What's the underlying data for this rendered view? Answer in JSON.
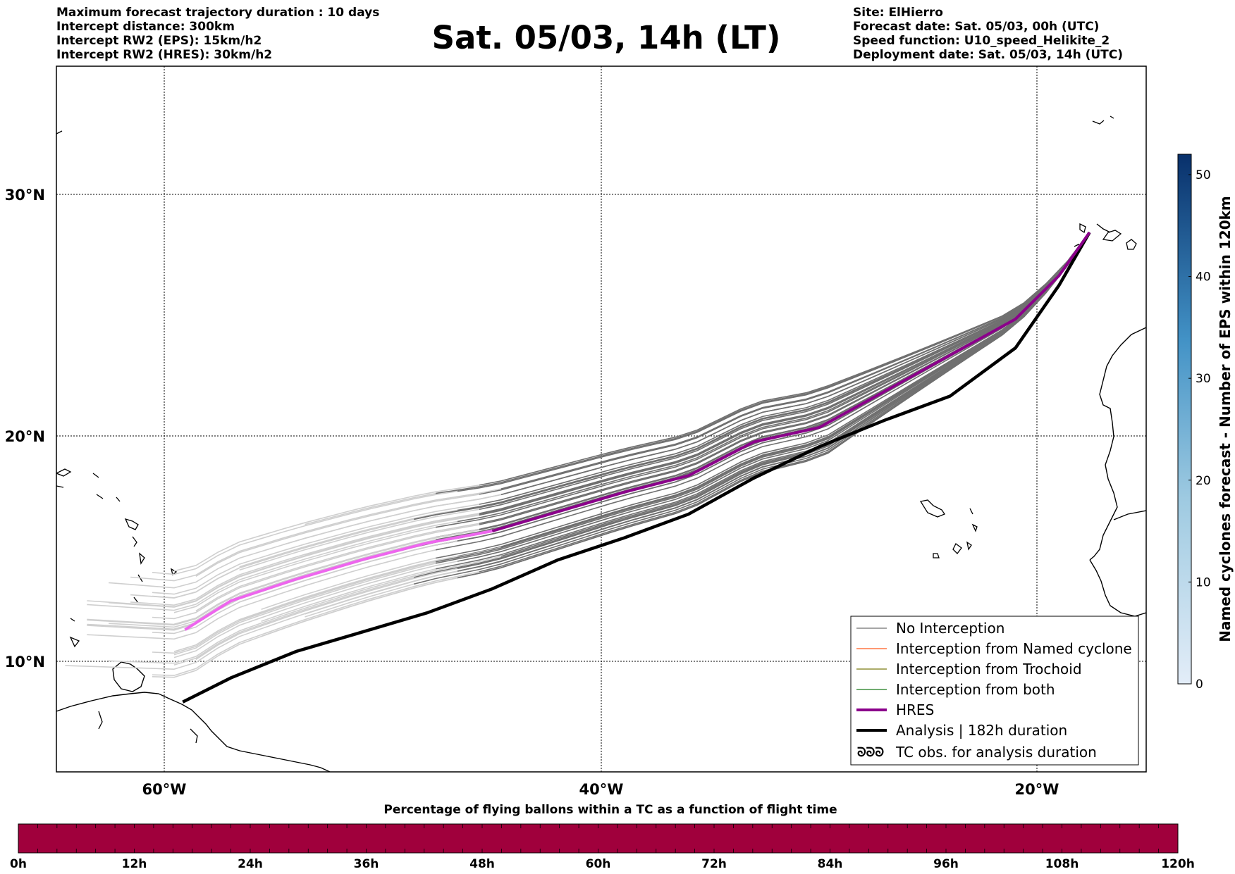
{
  "header_left": [
    "Maximum forecast trajectory duration : 10 days",
    "Intercept distance: 300km",
    "Intercept RW2 (EPS):  15km/h2",
    "Intercept RW2 (HRES): 30km/h2"
  ],
  "title": "Sat. 05/03, 14h (LT)",
  "header_right": [
    "Site: ElHierro",
    "Forecast date: Sat. 05/03, 00h (UTC)",
    "Speed function: U10_speed_Helikite_2",
    "Deployment date: Sat. 05/03, 14h (UTC)"
  ],
  "map": {
    "lon_range": [
      -65,
      -15
    ],
    "lat_range": [
      5.3,
      34.6
    ],
    "lat_labels": [
      "10°N",
      "20°N",
      "30°N"
    ],
    "lon_labels": [
      "60°W",
      "40°W",
      "20°W"
    ],
    "gridlines": true,
    "colors": {
      "no_interception": "#707070",
      "no_interception_late": "#cfcfcf",
      "named_cyclone": "#ff5a1f",
      "trochoid": "#7a7a10",
      "both": "#1c7a1c",
      "hres": "#8b008b",
      "hres_late": "#ee66ee",
      "analysis": "#000000"
    }
  },
  "legend": {
    "position": "lower-right",
    "items": [
      {
        "label": "No Interception",
        "style": "thin-gray"
      },
      {
        "label": "Interception from Named cyclone",
        "style": "thin-orange"
      },
      {
        "label": "Interception from Trochoid",
        "style": "thin-olive"
      },
      {
        "label": "Interception from both",
        "style": "thin-green"
      },
      {
        "label": "HRES",
        "style": "thick-purple"
      },
      {
        "label": "Analysis | 182h duration",
        "style": "thick-black"
      },
      {
        "label": "TC obs. for analysis duration",
        "style": "tc-symbols"
      }
    ],
    "tc_symbol": "ᘐᘐᘐ"
  },
  "chart_data": {
    "type": "line",
    "hres_track": {
      "lon": [
        -17.6,
        -19,
        -21,
        -24,
        -27,
        -30,
        -33,
        -36,
        -39,
        -42,
        -45,
        -48,
        -51,
        -54,
        -57,
        -59.1
      ],
      "lat": [
        27.7,
        25.9,
        24.1,
        22.6,
        21.1,
        19.6,
        19.0,
        17.6,
        16.9,
        16.1,
        15.3,
        14.8,
        14.1,
        13.3,
        12.4,
        11.2
      ]
    },
    "analysis_track": {
      "lon": [
        -17.6,
        -19,
        -21,
        -24,
        -27,
        -30,
        -33,
        -36,
        -39,
        -42,
        -45,
        -48,
        -51,
        -54,
        -57,
        -59.2
      ],
      "lat": [
        27.7,
        25.5,
        22.9,
        20.9,
        19.9,
        18.8,
        17.5,
        16.0,
        15.0,
        14.1,
        12.9,
        11.9,
        11.1,
        10.3,
        9.2,
        8.2
      ]
    },
    "eps_member_count": 50,
    "hres_color_change_lon": -45
  },
  "colorbar": {
    "label": "Named cyclones forecast - Number of EPS within 120km",
    "ticks": [
      "0",
      "10",
      "20",
      "30",
      "40",
      "50"
    ],
    "range": [
      0,
      52
    ],
    "color_low": "#e3edf8",
    "color_high": "#08306b"
  },
  "bottom_bar": {
    "title": "Percentage of flying ballons within a TC as a function of flight time",
    "ticks": [
      "0h",
      "12h",
      "24h",
      "36h",
      "48h",
      "60h",
      "72h",
      "84h",
      "96h",
      "108h",
      "120h"
    ],
    "fill_color": "#a0003c"
  }
}
